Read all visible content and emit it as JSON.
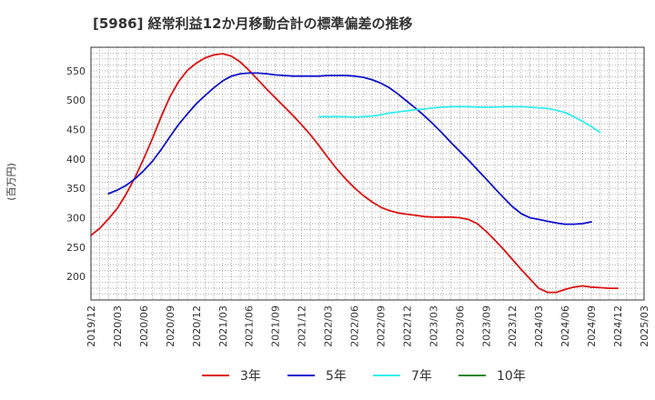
{
  "chart_data": {
    "type": "line",
    "title": "[5986]  経常利益12か月移動合計の標準偏差の推移",
    "ylabel": "(百万円)",
    "xlabel": "",
    "ylim": [
      160,
      590
    ],
    "yticks": [
      200,
      250,
      300,
      350,
      400,
      450,
      500,
      550
    ],
    "xlim": [
      "2019-12",
      "2025-03"
    ],
    "xticks": [
      "2019/12",
      "2020/03",
      "2020/06",
      "2020/09",
      "2020/12",
      "2021/03",
      "2021/06",
      "2021/09",
      "2021/12",
      "2022/03",
      "2022/06",
      "2022/09",
      "2022/12",
      "2023/03",
      "2023/06",
      "2023/09",
      "2023/12",
      "2024/03",
      "2024/06",
      "2024/09",
      "2024/12",
      "2025/03"
    ],
    "grid": true,
    "legend_position": "bottom",
    "series": [
      {
        "name": "3年",
        "color": "#dd1111",
        "points": [
          [
            "2019-12",
            270
          ],
          [
            "2020-01",
            282
          ],
          [
            "2020-02",
            298
          ],
          [
            "2020-03",
            316
          ],
          [
            "2020-04",
            340
          ],
          [
            "2020-05",
            368
          ],
          [
            "2020-06",
            400
          ],
          [
            "2020-07",
            435
          ],
          [
            "2020-08",
            472
          ],
          [
            "2020-09",
            506
          ],
          [
            "2020-10",
            532
          ],
          [
            "2020-11",
            551
          ],
          [
            "2020-12",
            563
          ],
          [
            "2021-01",
            572
          ],
          [
            "2021-02",
            577
          ],
          [
            "2021-03",
            579
          ],
          [
            "2021-04",
            575
          ],
          [
            "2021-05",
            565
          ],
          [
            "2021-06",
            551
          ],
          [
            "2021-07",
            535
          ],
          [
            "2021-08",
            519
          ],
          [
            "2021-09",
            504
          ],
          [
            "2021-10",
            489
          ],
          [
            "2021-11",
            474
          ],
          [
            "2021-12",
            458
          ],
          [
            "2022-01",
            441
          ],
          [
            "2022-02",
            422
          ],
          [
            "2022-03",
            402
          ],
          [
            "2022-04",
            383
          ],
          [
            "2022-05",
            366
          ],
          [
            "2022-06",
            351
          ],
          [
            "2022-07",
            338
          ],
          [
            "2022-08",
            327
          ],
          [
            "2022-09",
            318
          ],
          [
            "2022-10",
            312
          ],
          [
            "2022-11",
            308
          ],
          [
            "2022-12",
            306
          ],
          [
            "2023-01",
            304
          ],
          [
            "2023-02",
            302
          ],
          [
            "2023-03",
            301
          ],
          [
            "2023-04",
            301
          ],
          [
            "2023-05",
            301
          ],
          [
            "2023-06",
            300
          ],
          [
            "2023-07",
            297
          ],
          [
            "2023-08",
            290
          ],
          [
            "2023-09",
            277
          ],
          [
            "2023-10",
            262
          ],
          [
            "2023-11",
            246
          ],
          [
            "2023-12",
            229
          ],
          [
            "2024-01",
            212
          ],
          [
            "2024-02",
            196
          ],
          [
            "2024-03",
            180
          ],
          [
            "2024-04",
            173
          ],
          [
            "2024-05",
            173
          ],
          [
            "2024-06",
            178
          ],
          [
            "2024-07",
            182
          ],
          [
            "2024-08",
            184
          ],
          [
            "2024-09",
            182
          ],
          [
            "2024-10",
            181
          ],
          [
            "2024-11",
            180
          ],
          [
            "2024-12",
            180
          ]
        ]
      },
      {
        "name": "5年",
        "color": "#1111cc",
        "points": [
          [
            "2020-02",
            341
          ],
          [
            "2020-03",
            347
          ],
          [
            "2020-04",
            355
          ],
          [
            "2020-05",
            366
          ],
          [
            "2020-06",
            380
          ],
          [
            "2020-07",
            396
          ],
          [
            "2020-08",
            416
          ],
          [
            "2020-09",
            438
          ],
          [
            "2020-10",
            459
          ],
          [
            "2020-11",
            477
          ],
          [
            "2020-12",
            494
          ],
          [
            "2021-01",
            508
          ],
          [
            "2021-02",
            521
          ],
          [
            "2021-03",
            533
          ],
          [
            "2021-04",
            541
          ],
          [
            "2021-05",
            545
          ],
          [
            "2021-06",
            546
          ],
          [
            "2021-07",
            546
          ],
          [
            "2021-08",
            545
          ],
          [
            "2021-09",
            543
          ],
          [
            "2021-10",
            542
          ],
          [
            "2021-11",
            541
          ],
          [
            "2021-12",
            541
          ],
          [
            "2022-01",
            541
          ],
          [
            "2022-02",
            541
          ],
          [
            "2022-03",
            542
          ],
          [
            "2022-04",
            542
          ],
          [
            "2022-05",
            542
          ],
          [
            "2022-06",
            541
          ],
          [
            "2022-07",
            539
          ],
          [
            "2022-08",
            535
          ],
          [
            "2022-09",
            529
          ],
          [
            "2022-10",
            521
          ],
          [
            "2022-11",
            510
          ],
          [
            "2022-12",
            498
          ],
          [
            "2023-01",
            486
          ],
          [
            "2023-02",
            473
          ],
          [
            "2023-03",
            459
          ],
          [
            "2023-04",
            444
          ],
          [
            "2023-05",
            428
          ],
          [
            "2023-06",
            413
          ],
          [
            "2023-07",
            398
          ],
          [
            "2023-08",
            382
          ],
          [
            "2023-09",
            366
          ],
          [
            "2023-10",
            350
          ],
          [
            "2023-11",
            334
          ],
          [
            "2023-12",
            319
          ],
          [
            "2024-01",
            307
          ],
          [
            "2024-02",
            300
          ],
          [
            "2024-03",
            297
          ],
          [
            "2024-04",
            294
          ],
          [
            "2024-05",
            291
          ],
          [
            "2024-06",
            289
          ],
          [
            "2024-07",
            289
          ],
          [
            "2024-08",
            290
          ],
          [
            "2024-09",
            293
          ]
        ]
      },
      {
        "name": "7年",
        "color": "#33eeee",
        "points": [
          [
            "2022-02",
            472
          ],
          [
            "2022-03",
            472
          ],
          [
            "2022-04",
            472
          ],
          [
            "2022-05",
            472
          ],
          [
            "2022-06",
            471
          ],
          [
            "2022-07",
            472
          ],
          [
            "2022-08",
            473
          ],
          [
            "2022-09",
            475
          ],
          [
            "2022-10",
            478
          ],
          [
            "2022-11",
            480
          ],
          [
            "2022-12",
            482
          ],
          [
            "2023-01",
            484
          ],
          [
            "2023-02",
            485
          ],
          [
            "2023-03",
            487
          ],
          [
            "2023-04",
            488
          ],
          [
            "2023-05",
            489
          ],
          [
            "2023-06",
            489
          ],
          [
            "2023-07",
            489
          ],
          [
            "2023-08",
            488
          ],
          [
            "2023-09",
            488
          ],
          [
            "2023-10",
            488
          ],
          [
            "2023-11",
            489
          ],
          [
            "2023-12",
            489
          ],
          [
            "2024-01",
            489
          ],
          [
            "2024-02",
            488
          ],
          [
            "2024-03",
            487
          ],
          [
            "2024-04",
            486
          ],
          [
            "2024-05",
            483
          ],
          [
            "2024-06",
            479
          ],
          [
            "2024-07",
            472
          ],
          [
            "2024-08",
            464
          ],
          [
            "2024-09",
            455
          ],
          [
            "2024-10",
            445
          ]
        ]
      },
      {
        "name": "10年",
        "color": "#228822",
        "points": []
      }
    ]
  }
}
